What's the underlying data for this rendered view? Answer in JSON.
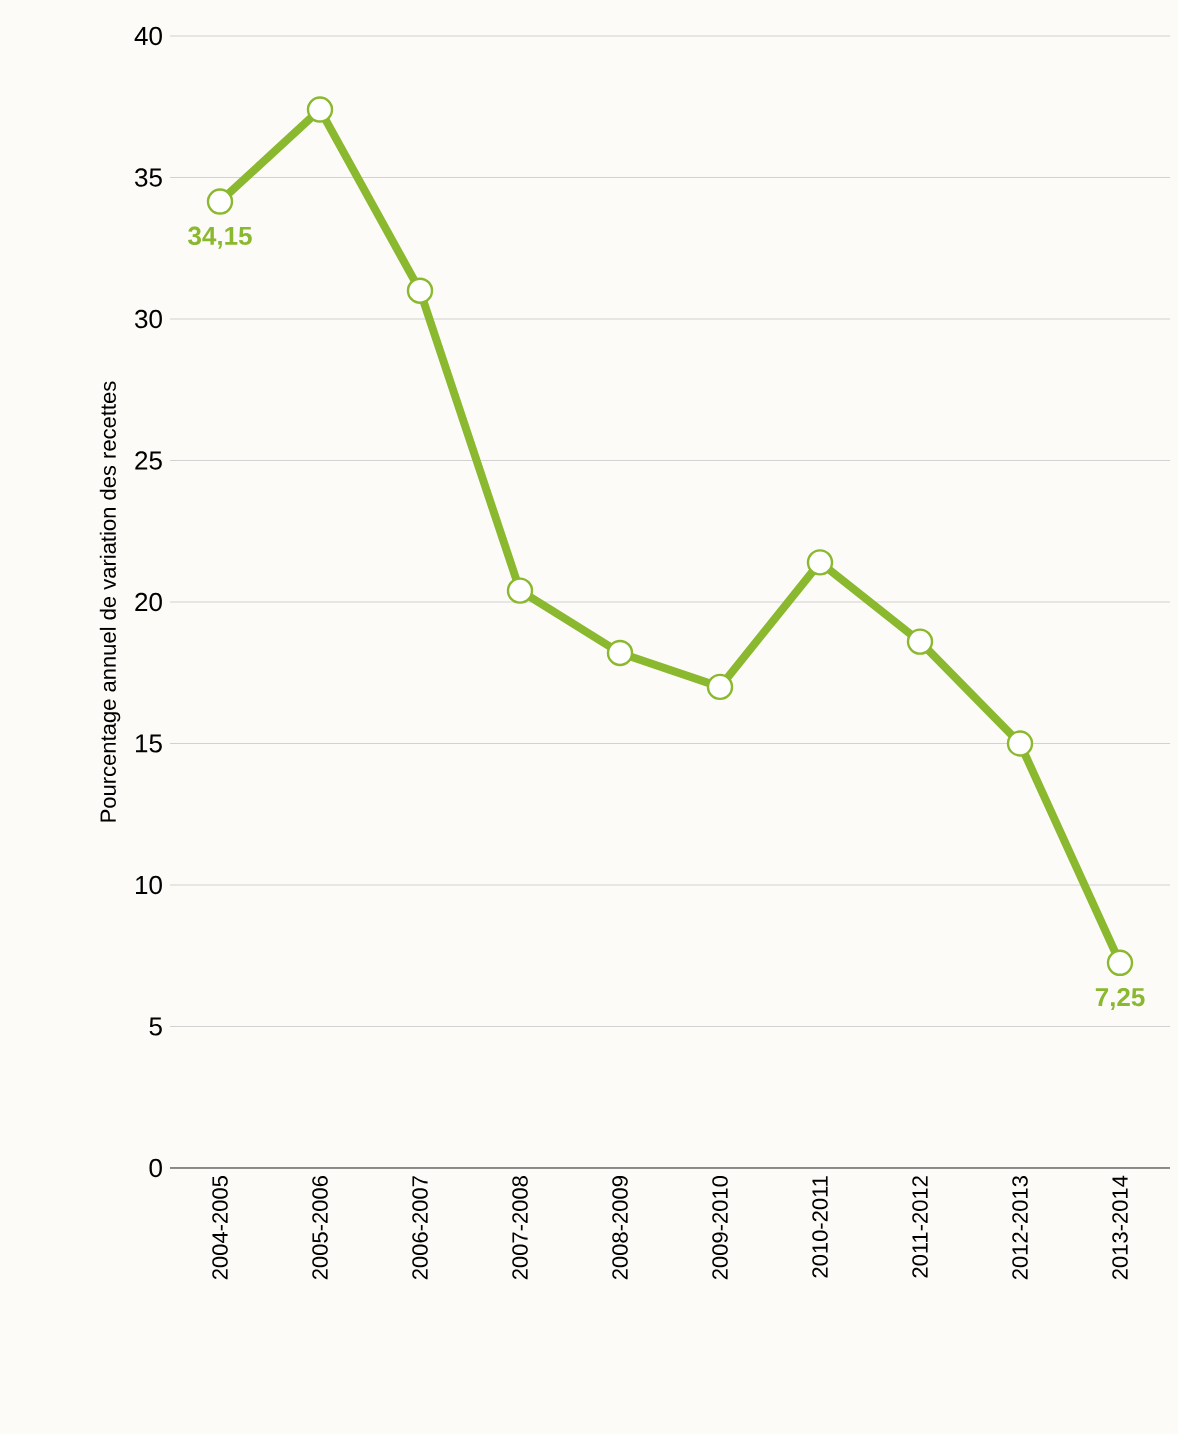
{
  "chart_data": {
    "type": "line",
    "ylabel": "Pourcentage annuel de variation des recettes",
    "categories": [
      "2004-2005",
      "2005-2006",
      "2006-2007",
      "2007-2008",
      "2008-2009",
      "2009-2010",
      "2010-2011",
      "2011-2012",
      "2012-2013",
      "2013-2014"
    ],
    "values": [
      34.15,
      37.4,
      31.0,
      20.4,
      18.2,
      17.0,
      21.4,
      18.6,
      15.0,
      7.25
    ],
    "value_labels": [
      "34,15",
      null,
      null,
      null,
      null,
      null,
      null,
      null,
      null,
      "7,25"
    ],
    "color": "#8ab82e",
    "marker": "circle",
    "line_style": "solid",
    "grid": "y",
    "ylim": [
      0,
      40
    ],
    "yticks": [
      0,
      5,
      10,
      15,
      20,
      25,
      30,
      35,
      40
    ]
  }
}
